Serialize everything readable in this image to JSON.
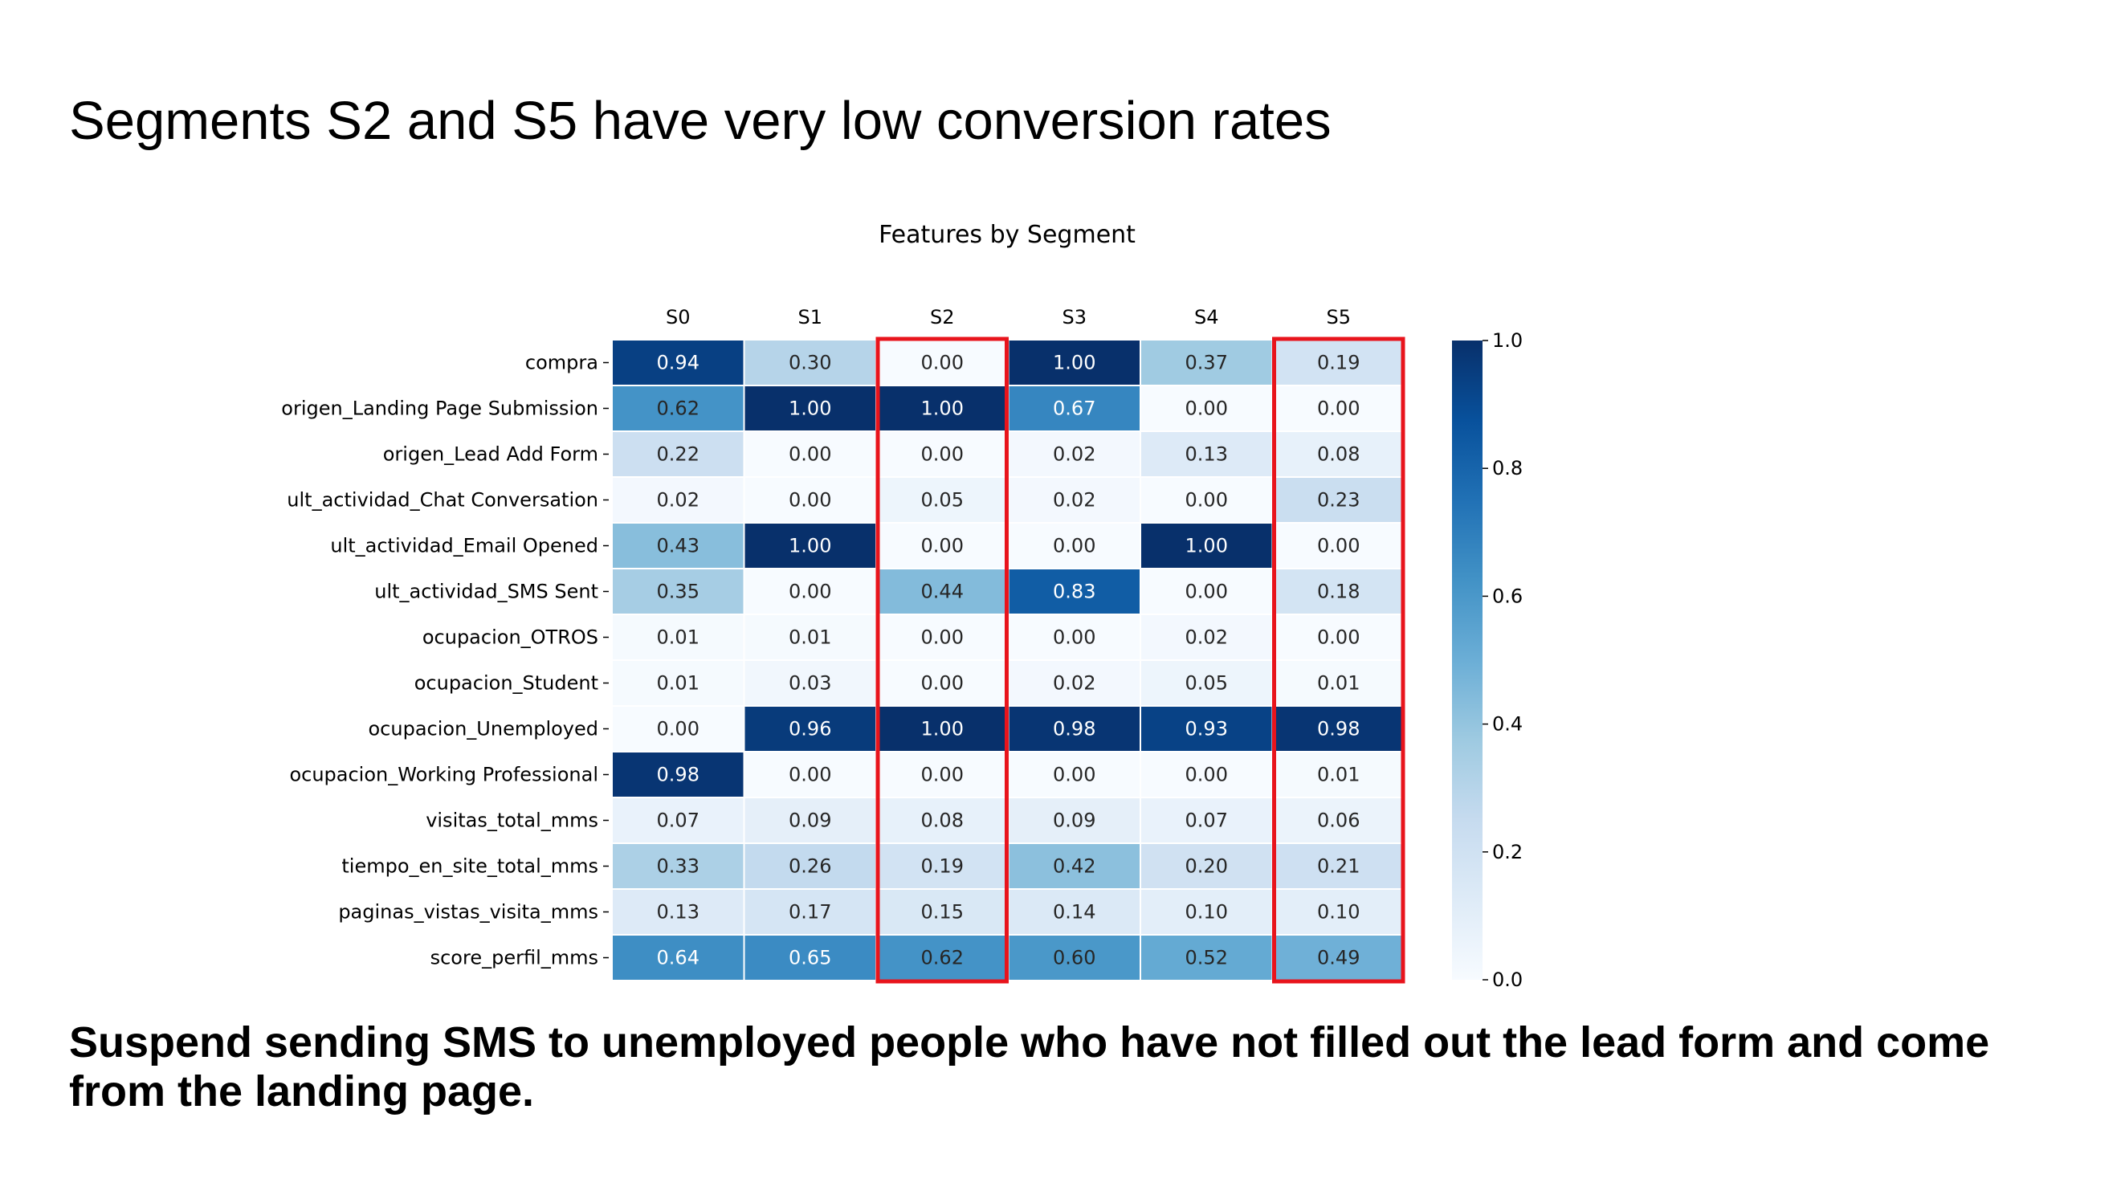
{
  "slide": {
    "title": "Segments S2 and S5 have very low conversion rates",
    "footer": "Suspend sending SMS to unemployed people who have not filled out the lead form and come from the landing page."
  },
  "chart_data": {
    "type": "heatmap",
    "title": "Features by Segment",
    "columns": [
      "S0",
      "S1",
      "S2",
      "S3",
      "S4",
      "S5"
    ],
    "rows": [
      "compra",
      "origen_Landing Page Submission",
      "origen_Lead Add Form",
      "ult_actividad_Chat Conversation",
      "ult_actividad_Email Opened",
      "ult_actividad_SMS Sent",
      "ocupacion_OTROS",
      "ocupacion_Student",
      "ocupacion_Unemployed",
      "ocupacion_Working Professional",
      "visitas_total_mms",
      "tiempo_en_site_total_mms",
      "paginas_vistas_visita_mms",
      "score_perfil_mms"
    ],
    "values": [
      [
        0.94,
        0.3,
        0.0,
        1.0,
        0.37,
        0.19
      ],
      [
        0.62,
        1.0,
        1.0,
        0.67,
        0.0,
        0.0
      ],
      [
        0.22,
        0.0,
        0.0,
        0.02,
        0.13,
        0.08
      ],
      [
        0.02,
        0.0,
        0.05,
        0.02,
        0.0,
        0.23
      ],
      [
        0.43,
        1.0,
        0.0,
        0.0,
        1.0,
        0.0
      ],
      [
        0.35,
        0.0,
        0.44,
        0.83,
        0.0,
        0.18
      ],
      [
        0.01,
        0.01,
        0.0,
        0.0,
        0.02,
        0.0
      ],
      [
        0.01,
        0.03,
        0.0,
        0.02,
        0.05,
        0.01
      ],
      [
        0.0,
        0.96,
        1.0,
        0.98,
        0.93,
        0.98
      ],
      [
        0.98,
        0.0,
        0.0,
        0.0,
        0.0,
        0.01
      ],
      [
        0.07,
        0.09,
        0.08,
        0.09,
        0.07,
        0.06
      ],
      [
        0.33,
        0.26,
        0.19,
        0.42,
        0.2,
        0.21
      ],
      [
        0.13,
        0.17,
        0.15,
        0.14,
        0.1,
        0.1
      ],
      [
        0.64,
        0.65,
        0.62,
        0.6,
        0.52,
        0.49
      ]
    ],
    "colormap": "Blues",
    "vmin": 0.0,
    "vmax": 1.0,
    "colorbar_ticks": [
      "0.0",
      "0.2",
      "0.4",
      "0.6",
      "0.8",
      "1.0"
    ],
    "highlighted_columns": [
      "S2",
      "S5"
    ],
    "highlight_color": "#e8141c",
    "x_axis_position": "top"
  }
}
